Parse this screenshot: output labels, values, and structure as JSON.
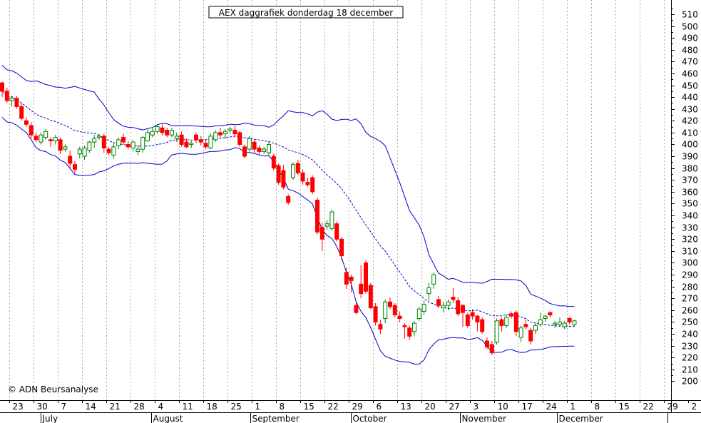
{
  "chart_data": {
    "type": "candlestick",
    "title": "AEX daggrafiek donderdag 18 december",
    "credit": "© ADN Beursanalyse",
    "ylim": [
      184,
      522
    ],
    "yticks": [
      200,
      210,
      220,
      230,
      240,
      250,
      260,
      270,
      280,
      290,
      300,
      310,
      320,
      330,
      340,
      350,
      360,
      370,
      380,
      390,
      400,
      410,
      420,
      430,
      440,
      450,
      460,
      470,
      480,
      490,
      500,
      510
    ],
    "grid": "vertical-dotted",
    "xday_ticks": [
      "23",
      "30",
      "7",
      "14",
      "21",
      "28",
      "4",
      "11",
      "18",
      "25",
      "1",
      "8",
      "15",
      "22",
      "29",
      "6",
      "13",
      "20",
      "27",
      "3",
      "10",
      "17",
      "24",
      "1",
      "8",
      "15",
      "22",
      "29",
      "2"
    ],
    "month_labels": [
      "July",
      "August",
      "September",
      "October",
      "November",
      "December"
    ],
    "colors": {
      "up": "#008000",
      "down": "#ff0000",
      "band": "#0000cc",
      "ma": "#0000cc",
      "grid": "#a8a8a8"
    },
    "candles": [
      {
        "o": 452,
        "h": 453,
        "l": 440,
        "c": 445
      },
      {
        "o": 445,
        "h": 448,
        "l": 435,
        "c": 437
      },
      {
        "o": 437,
        "h": 441,
        "l": 432,
        "c": 439
      },
      {
        "o": 439,
        "h": 441,
        "l": 430,
        "c": 432
      },
      {
        "o": 432,
        "h": 435,
        "l": 420,
        "c": 422
      },
      {
        "o": 420,
        "h": 423,
        "l": 415,
        "c": 417
      },
      {
        "o": 416,
        "h": 419,
        "l": 405,
        "c": 408
      },
      {
        "o": 407,
        "h": 410,
        "l": 402,
        "c": 404
      },
      {
        "o": 402,
        "h": 410,
        "l": 400,
        "c": 408
      },
      {
        "o": 406,
        "h": 413,
        "l": 404,
        "c": 411
      },
      {
        "o": 404,
        "h": 406,
        "l": 398,
        "c": 403
      },
      {
        "o": 403,
        "h": 408,
        "l": 400,
        "c": 406
      },
      {
        "o": 404,
        "h": 406,
        "l": 392,
        "c": 395
      },
      {
        "o": 396,
        "h": 400,
        "l": 394,
        "c": 398
      },
      {
        "o": 390,
        "h": 395,
        "l": 380,
        "c": 384
      },
      {
        "o": 383,
        "h": 386,
        "l": 375,
        "c": 379
      },
      {
        "o": 392,
        "h": 398,
        "l": 388,
        "c": 396
      },
      {
        "o": 390,
        "h": 399,
        "l": 387,
        "c": 397
      },
      {
        "o": 395,
        "h": 403,
        "l": 393,
        "c": 402
      },
      {
        "o": 402,
        "h": 408,
        "l": 397,
        "c": 405
      },
      {
        "o": 406,
        "h": 409,
        "l": 404,
        "c": 407
      },
      {
        "o": 407,
        "h": 409,
        "l": 393,
        "c": 397
      },
      {
        "o": 396,
        "h": 398,
        "l": 391,
        "c": 393
      },
      {
        "o": 391,
        "h": 402,
        "l": 388,
        "c": 398
      },
      {
        "o": 399,
        "h": 406,
        "l": 396,
        "c": 404
      },
      {
        "o": 406,
        "h": 409,
        "l": 400,
        "c": 402
      },
      {
        "o": 400,
        "h": 403,
        "l": 396,
        "c": 398
      },
      {
        "o": 397,
        "h": 404,
        "l": 394,
        "c": 402
      },
      {
        "o": 394,
        "h": 399,
        "l": 391,
        "c": 396
      },
      {
        "o": 396,
        "h": 407,
        "l": 393,
        "c": 406
      },
      {
        "o": 403,
        "h": 413,
        "l": 402,
        "c": 410
      },
      {
        "o": 408,
        "h": 414,
        "l": 406,
        "c": 411
      },
      {
        "o": 411,
        "h": 417,
        "l": 409,
        "c": 415
      },
      {
        "o": 414,
        "h": 417,
        "l": 408,
        "c": 410
      },
      {
        "o": 412,
        "h": 414,
        "l": 406,
        "c": 408
      },
      {
        "o": 408,
        "h": 414,
        "l": 406,
        "c": 412
      },
      {
        "o": 405,
        "h": 410,
        "l": 402,
        "c": 407
      },
      {
        "o": 408,
        "h": 411,
        "l": 398,
        "c": 400
      },
      {
        "o": 402,
        "h": 405,
        "l": 397,
        "c": 398
      },
      {
        "o": 400,
        "h": 403,
        "l": 397,
        "c": 401
      },
      {
        "o": 408,
        "h": 410,
        "l": 401,
        "c": 404
      },
      {
        "o": 404,
        "h": 407,
        "l": 399,
        "c": 402
      },
      {
        "o": 401,
        "h": 404,
        "l": 396,
        "c": 398
      },
      {
        "o": 397,
        "h": 409,
        "l": 396,
        "c": 407
      },
      {
        "o": 404,
        "h": 412,
        "l": 402,
        "c": 410
      },
      {
        "o": 410,
        "h": 414,
        "l": 406,
        "c": 408
      },
      {
        "o": 409,
        "h": 413,
        "l": 405,
        "c": 411
      },
      {
        "o": 412,
        "h": 415,
        "l": 409,
        "c": 413
      },
      {
        "o": 412,
        "h": 416,
        "l": 406,
        "c": 409
      },
      {
        "o": 410,
        "h": 412,
        "l": 398,
        "c": 400
      },
      {
        "o": 398,
        "h": 400,
        "l": 388,
        "c": 390
      },
      {
        "o": 396,
        "h": 407,
        "l": 394,
        "c": 405
      },
      {
        "o": 402,
        "h": 404,
        "l": 393,
        "c": 396
      },
      {
        "o": 397,
        "h": 399,
        "l": 391,
        "c": 394
      },
      {
        "o": 394,
        "h": 398,
        "l": 392,
        "c": 396
      },
      {
        "o": 393,
        "h": 402,
        "l": 390,
        "c": 400
      },
      {
        "o": 390,
        "h": 392,
        "l": 378,
        "c": 380
      },
      {
        "o": 382,
        "h": 384,
        "l": 366,
        "c": 368
      },
      {
        "o": 378,
        "h": 383,
        "l": 362,
        "c": 364
      },
      {
        "o": 356,
        "h": 358,
        "l": 349,
        "c": 351
      },
      {
        "o": 372,
        "h": 385,
        "l": 370,
        "c": 383
      },
      {
        "o": 384,
        "h": 387,
        "l": 374,
        "c": 376
      },
      {
        "o": 376,
        "h": 379,
        "l": 366,
        "c": 369
      },
      {
        "o": 368,
        "h": 372,
        "l": 364,
        "c": 366
      },
      {
        "o": 372,
        "h": 374,
        "l": 358,
        "c": 360
      },
      {
        "o": 353,
        "h": 355,
        "l": 324,
        "c": 326
      },
      {
        "o": 330,
        "h": 334,
        "l": 310,
        "c": 320
      },
      {
        "o": 331,
        "h": 336,
        "l": 328,
        "c": 333
      },
      {
        "o": 329,
        "h": 345,
        "l": 327,
        "c": 343
      },
      {
        "o": 333,
        "h": 335,
        "l": 318,
        "c": 320
      },
      {
        "o": 320,
        "h": 322,
        "l": 302,
        "c": 306
      },
      {
        "o": 292,
        "h": 296,
        "l": 278,
        "c": 282
      },
      {
        "o": 288,
        "h": 290,
        "l": 275,
        "c": 285
      },
      {
        "o": 264,
        "h": 266,
        "l": 256,
        "c": 258
      },
      {
        "o": 282,
        "h": 298,
        "l": 270,
        "c": 274
      },
      {
        "o": 300,
        "h": 302,
        "l": 274,
        "c": 276
      },
      {
        "o": 281,
        "h": 283,
        "l": 261,
        "c": 262
      },
      {
        "o": 263,
        "h": 266,
        "l": 247,
        "c": 250
      },
      {
        "o": 248,
        "h": 252,
        "l": 240,
        "c": 244
      },
      {
        "o": 253,
        "h": 269,
        "l": 249,
        "c": 267
      },
      {
        "o": 267,
        "h": 271,
        "l": 261,
        "c": 263
      },
      {
        "o": 264,
        "h": 266,
        "l": 254,
        "c": 256
      },
      {
        "o": 255,
        "h": 259,
        "l": 250,
        "c": 253
      },
      {
        "o": 247,
        "h": 249,
        "l": 236,
        "c": 246
      },
      {
        "o": 245,
        "h": 247,
        "l": 235,
        "c": 238
      },
      {
        "o": 242,
        "h": 251,
        "l": 238,
        "c": 249
      },
      {
        "o": 253,
        "h": 263,
        "l": 251,
        "c": 261
      },
      {
        "o": 259,
        "h": 268,
        "l": 256,
        "c": 265
      },
      {
        "o": 274,
        "h": 283,
        "l": 268,
        "c": 279
      },
      {
        "o": 282,
        "h": 292,
        "l": 278,
        "c": 290
      },
      {
        "o": 269,
        "h": 272,
        "l": 262,
        "c": 264
      },
      {
        "o": 262,
        "h": 267,
        "l": 258,
        "c": 264
      },
      {
        "o": 264,
        "h": 269,
        "l": 260,
        "c": 267
      },
      {
        "o": 271,
        "h": 279,
        "l": 266,
        "c": 269
      },
      {
        "o": 268,
        "h": 271,
        "l": 255,
        "c": 257
      },
      {
        "o": 264,
        "h": 265,
        "l": 246,
        "c": 258
      },
      {
        "o": 256,
        "h": 258,
        "l": 245,
        "c": 247
      },
      {
        "o": 258,
        "h": 261,
        "l": 252,
        "c": 255
      },
      {
        "o": 255,
        "h": 256,
        "l": 242,
        "c": 250
      },
      {
        "o": 252,
        "h": 254,
        "l": 240,
        "c": 242
      },
      {
        "o": 234,
        "h": 237,
        "l": 227,
        "c": 229
      },
      {
        "o": 231,
        "h": 234,
        "l": 222,
        "c": 224
      },
      {
        "o": 233,
        "h": 253,
        "l": 231,
        "c": 251
      },
      {
        "o": 252,
        "h": 254,
        "l": 242,
        "c": 247
      },
      {
        "o": 247,
        "h": 256,
        "l": 245,
        "c": 254
      },
      {
        "o": 257,
        "h": 259,
        "l": 253,
        "c": 255
      },
      {
        "o": 258,
        "h": 260,
        "l": 238,
        "c": 242
      },
      {
        "o": 237,
        "h": 247,
        "l": 233,
        "c": 245
      },
      {
        "o": 248,
        "h": 252,
        "l": 244,
        "c": 246
      },
      {
        "o": 243,
        "h": 245,
        "l": 231,
        "c": 234
      },
      {
        "o": 243,
        "h": 249,
        "l": 240,
        "c": 247
      },
      {
        "o": 248,
        "h": 258,
        "l": 246,
        "c": 252
      },
      {
        "o": 253,
        "h": 256,
        "l": 250,
        "c": 255
      },
      {
        "o": 258,
        "h": 259,
        "l": 254,
        "c": 256
      },
      {
        "o": 248,
        "h": 251,
        "l": 245,
        "c": 249
      },
      {
        "o": 248,
        "h": 254,
        "l": 246,
        "c": 250
      },
      {
        "o": 246,
        "h": 251,
        "l": 244,
        "c": 249
      },
      {
        "o": 253,
        "h": 254,
        "l": 248,
        "c": 250
      },
      {
        "o": 248,
        "h": 252,
        "l": 246,
        "c": 251
      }
    ]
  }
}
